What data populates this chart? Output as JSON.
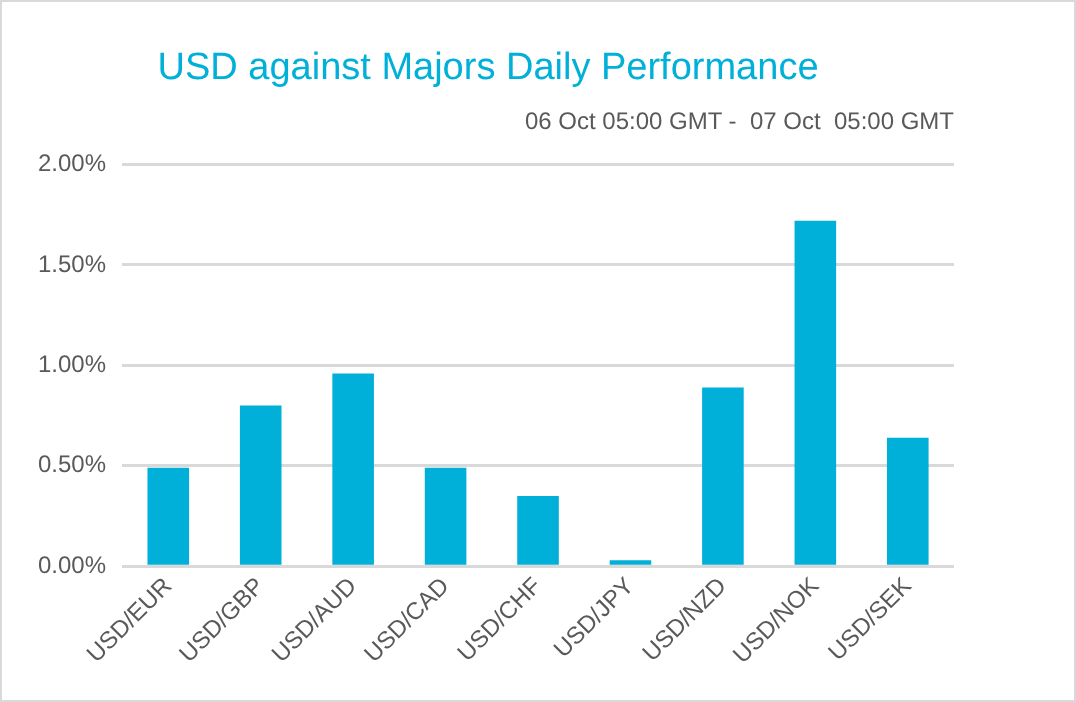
{
  "chart_data": {
    "type": "bar",
    "title": "USD against Majors Daily Performance",
    "subtitle": "06 Oct 05:00 GMT -  07 Oct  05:00 GMT",
    "categories": [
      "USD/EUR",
      "USD/GBP",
      "USD/AUD",
      "USD/CAD",
      "USD/CHF",
      "USD/JPY",
      "USD/NZD",
      "USD/NOK",
      "USD/SEK"
    ],
    "values": [
      0.49,
      0.8,
      0.96,
      0.49,
      0.35,
      0.03,
      0.89,
      1.72,
      0.64
    ],
    "color": "#00b0d8",
    "ylim": [
      0,
      2
    ],
    "yticks": [
      {
        "value": 0,
        "label": "0.00%"
      },
      {
        "value": 0.5,
        "label": "0.50%"
      },
      {
        "value": 1,
        "label": "1.00%"
      },
      {
        "value": 1.5,
        "label": "1.50%"
      },
      {
        "value": 2,
        "label": "2.00%"
      }
    ],
    "grid": "y"
  }
}
